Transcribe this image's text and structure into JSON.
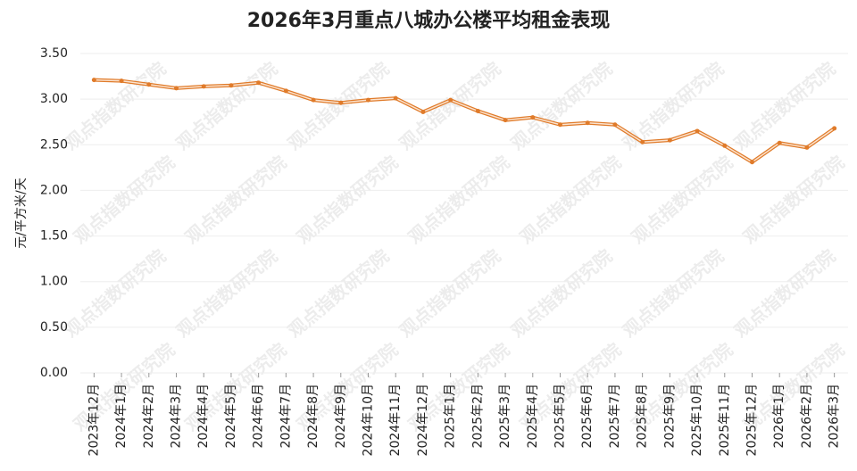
{
  "chart_data": {
    "type": "line",
    "title": "2026年3月重点八城办公楼平均租金表现",
    "ylabel": "元/平方米/天",
    "watermark": "观点指数研究院",
    "categories": [
      "2023年12月",
      "2024年1月",
      "2024年2月",
      "2024年3月",
      "2024年4月",
      "2024年5月",
      "2024年6月",
      "2024年7月",
      "2024年8月",
      "2024年9月",
      "2024年10月",
      "2024年11月",
      "2024年12月",
      "2025年1月",
      "2025年2月",
      "2025年3月",
      "2025年4月",
      "2025年5月",
      "2025年6月",
      "2025年7月",
      "2025年8月",
      "2025年9月",
      "2025年10月",
      "2025年11月",
      "2025年12月",
      "2026年1月",
      "2026年2月",
      "2026年3月"
    ],
    "series": [
      {
        "color": "#e07b2a",
        "values": [
          3.21,
          3.2,
          3.16,
          3.12,
          3.14,
          3.15,
          3.18,
          3.09,
          2.99,
          2.96,
          2.99,
          3.01,
          2.86,
          2.99,
          2.87,
          2.77,
          2.8,
          2.72,
          2.74,
          2.72,
          2.53,
          2.55,
          2.65,
          2.49,
          2.31,
          2.52,
          2.47,
          2.68
        ]
      }
    ],
    "ylim": [
      0,
      3.5
    ],
    "yticks": [
      {
        "value": 0,
        "label": "0.00"
      },
      {
        "value": 0.5,
        "label": "0.50"
      },
      {
        "value": 1,
        "label": "1.00"
      },
      {
        "value": 1.5,
        "label": "1.50"
      },
      {
        "value": 2,
        "label": "2.00"
      },
      {
        "value": 2.5,
        "label": "2.50"
      },
      {
        "value": 3,
        "label": "3.00"
      },
      {
        "value": 3.5,
        "label": "3.50"
      }
    ],
    "grid": true
  }
}
